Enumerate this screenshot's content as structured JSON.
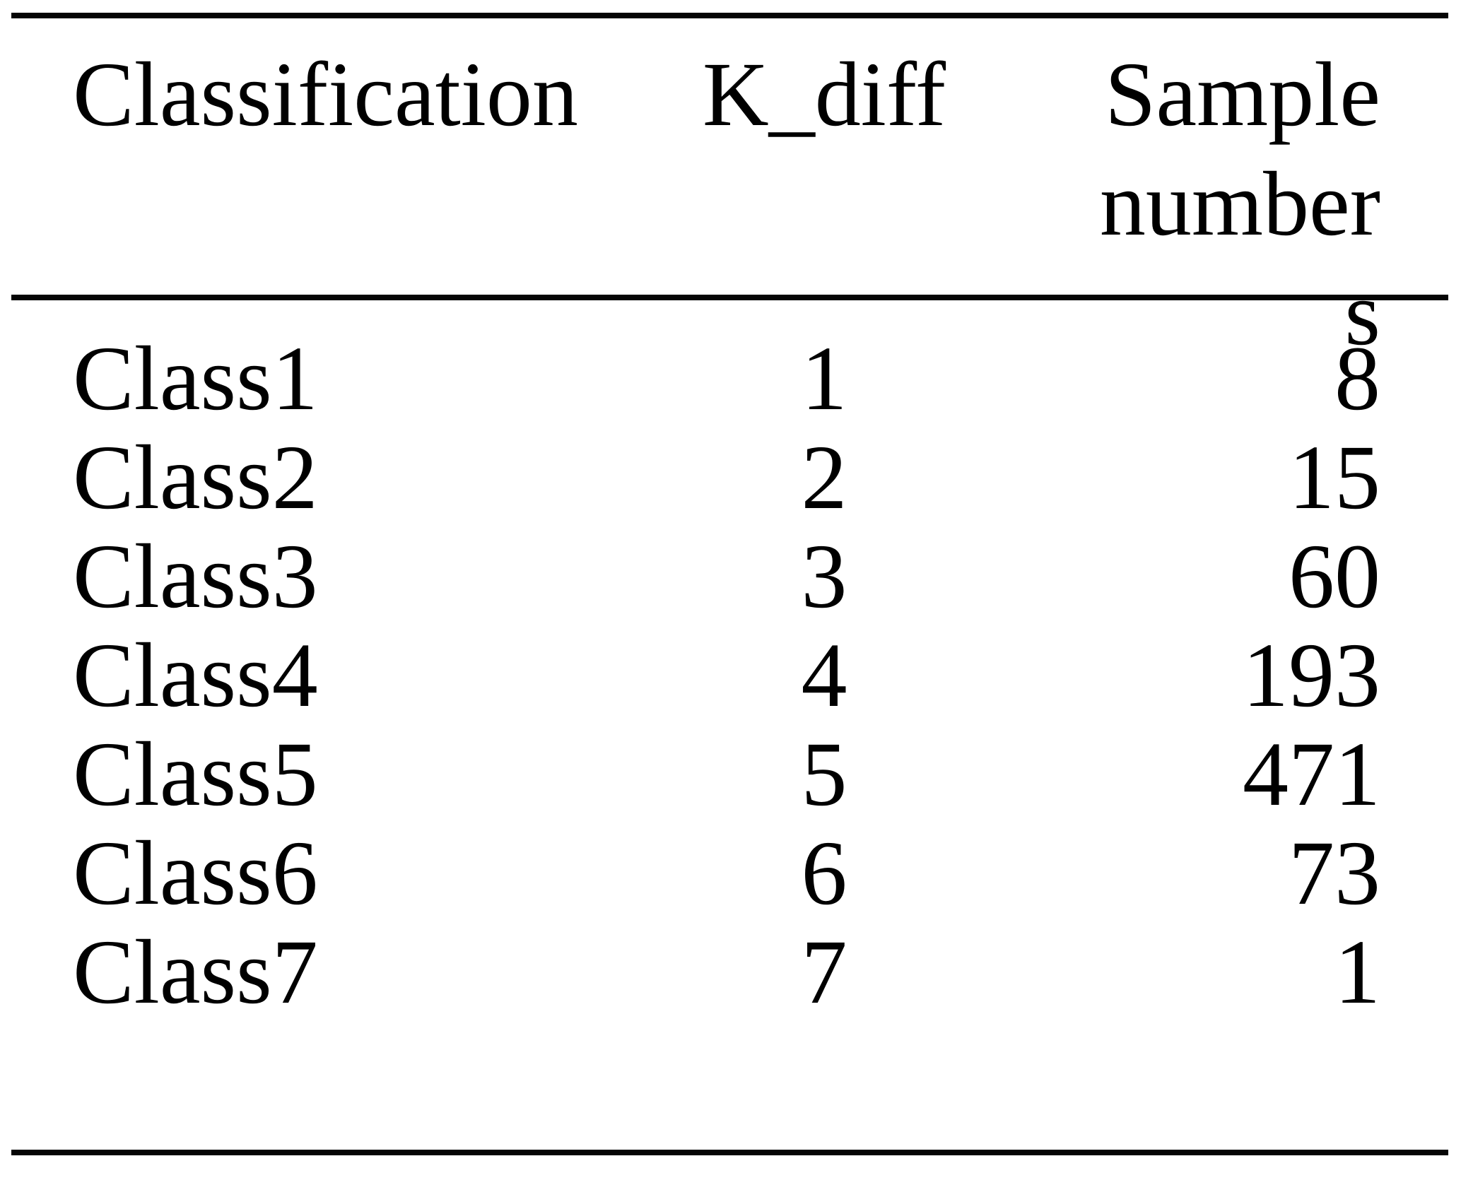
{
  "document": {
    "kind": "academic-table",
    "columns": [
      "Classification",
      "K_diff",
      "Sample numbers"
    ],
    "header": {
      "classification": "Classification",
      "k_diff": "K_diff",
      "sample_numbers": "Sample numbers"
    },
    "rows": [
      {
        "classification": "Class1",
        "k_diff": "1",
        "sample_numbers": "8"
      },
      {
        "classification": "Class2",
        "k_diff": "2",
        "sample_numbers": "15"
      },
      {
        "classification": "Class3",
        "k_diff": "3",
        "sample_numbers": "60"
      },
      {
        "classification": "Class4",
        "k_diff": "4",
        "sample_numbers": "193"
      },
      {
        "classification": "Class5",
        "k_diff": "5",
        "sample_numbers": "471"
      },
      {
        "classification": "Class6",
        "k_diff": "6",
        "sample_numbers": "73"
      },
      {
        "classification": "Class7",
        "k_diff": "7",
        "sample_numbers": "1"
      }
    ],
    "colors": {
      "text": "#000000",
      "rule": "#050505",
      "background": "#ffffff"
    }
  },
  "chart_data": {
    "type": "table",
    "title": "",
    "columns": [
      "Classification",
      "K_diff",
      "Sample numbers"
    ],
    "rows": [
      [
        "Class1",
        1,
        8
      ],
      [
        "Class2",
        2,
        15
      ],
      [
        "Class3",
        3,
        60
      ],
      [
        "Class4",
        4,
        193
      ],
      [
        "Class5",
        5,
        471
      ],
      [
        "Class6",
        6,
        73
      ],
      [
        "Class7",
        7,
        1
      ]
    ]
  }
}
